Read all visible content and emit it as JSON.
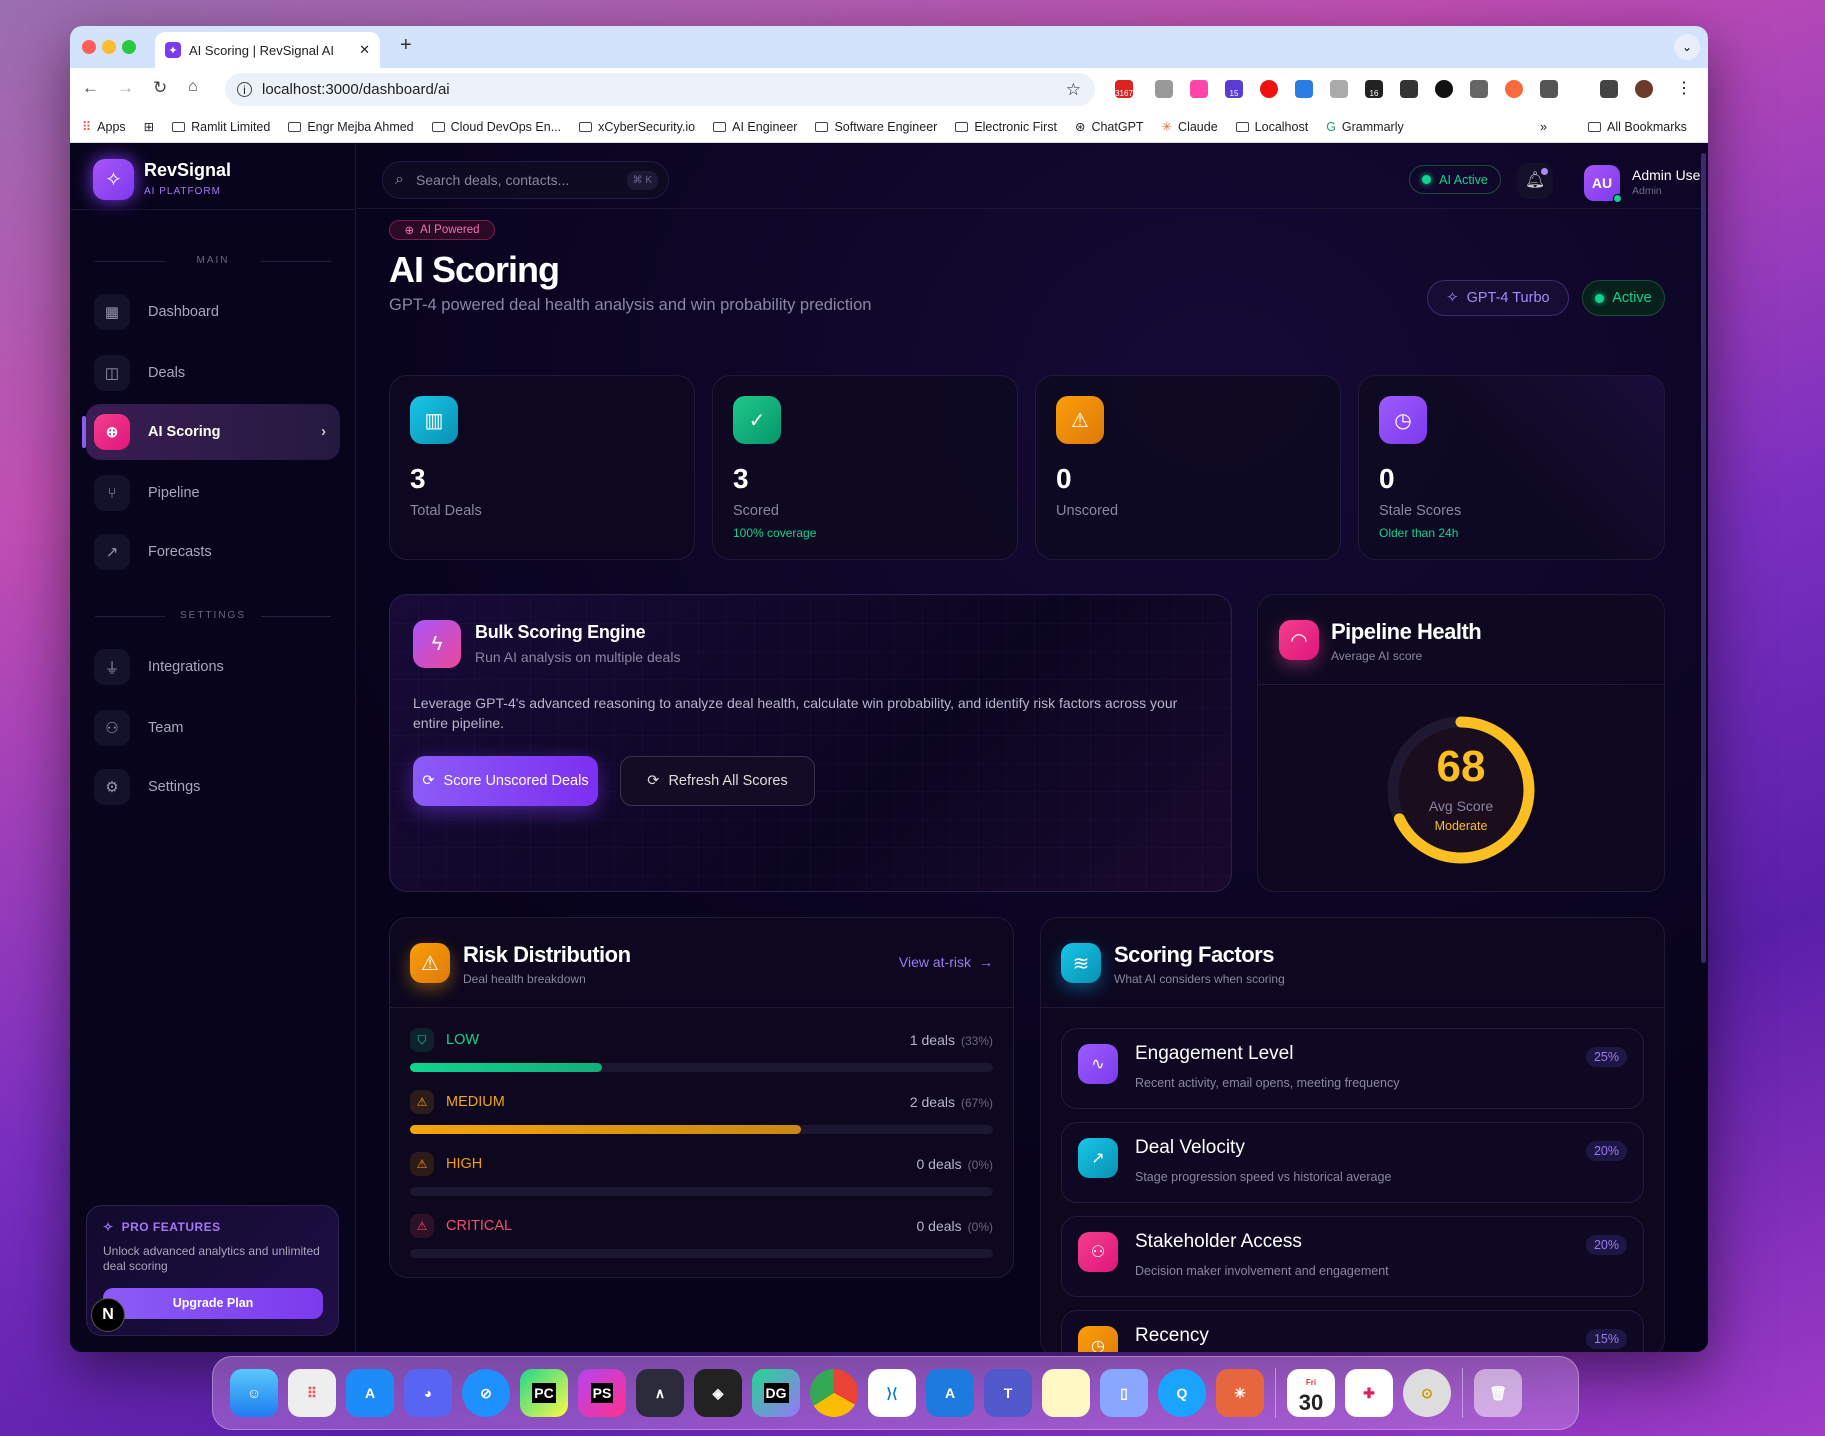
{
  "browser": {
    "tab_title": "AI Scoring | RevSignal AI",
    "url": "localhost:3000/dashboard/ai",
    "new_tab": "+",
    "bookmarks": [
      "Apps",
      "Ramlit Limited",
      "Engr Mejba Ahmed",
      "Cloud DevOps En...",
      "xCyberSecurity.io",
      "AI Engineer",
      "Software Engineer",
      "Electronic First",
      "ChatGPT",
      "Claude",
      "Localhost",
      "Grammarly"
    ],
    "bookmarks_overflow": "»",
    "all_bookmarks": "All Bookmarks",
    "ext_badges": [
      "3167",
      "15",
      "16"
    ]
  },
  "brand": {
    "name": "RevSignal",
    "tagline": "AI PLATFORM"
  },
  "sidebar": {
    "main_label": "MAIN",
    "settings_label": "SETTINGS",
    "main_items": [
      {
        "label": "Dashboard"
      },
      {
        "label": "Deals"
      },
      {
        "label": "AI Scoring"
      },
      {
        "label": "Pipeline"
      },
      {
        "label": "Forecasts"
      }
    ],
    "settings_items": [
      {
        "label": "Integrations"
      },
      {
        "label": "Team"
      },
      {
        "label": "Settings"
      }
    ],
    "pro": {
      "title": "PRO FEATURES",
      "text": "Unlock advanced analytics and unlimited deal scoring",
      "button": "Upgrade Plan"
    },
    "next_badge": "N"
  },
  "header": {
    "search_placeholder": "Search deals, contacts...",
    "shortcut": "⌘ K",
    "ai_status": "AI Active",
    "user_initials": "AU",
    "user_name": "Admin User",
    "user_role": "Admin"
  },
  "page": {
    "badge": "AI Powered",
    "title": "AI Scoring",
    "subtitle": "GPT-4 powered deal health analysis and win probability prediction",
    "model": "GPT-4 Turbo",
    "status": "Active"
  },
  "stats": [
    {
      "value": "3",
      "label": "Total Deals",
      "sub": "",
      "color": "#0fb5d4"
    },
    {
      "value": "3",
      "label": "Scored",
      "sub": "100% coverage",
      "color": "#10b981"
    },
    {
      "value": "0",
      "label": "Unscored",
      "sub": "",
      "color": "#f59e0b"
    },
    {
      "value": "0",
      "label": "Stale Scores",
      "sub": "Older than 24h",
      "color": "#8b5cf6"
    }
  ],
  "bulk": {
    "title": "Bulk Scoring Engine",
    "subtitle": "Run AI analysis on multiple deals",
    "description": "Leverage GPT-4's advanced reasoning to analyze deal health, calculate win probability, and identify risk factors across your entire pipeline.",
    "primary_button": "Score Unscored Deals",
    "secondary_button": "Refresh All Scores"
  },
  "health": {
    "title": "Pipeline Health",
    "subtitle": "Average AI score",
    "score": 68,
    "score_label": "Avg Score",
    "rating": "Moderate",
    "max": 100,
    "color": "#fbbf24"
  },
  "risk": {
    "title": "Risk Distribution",
    "subtitle": "Deal health breakdown",
    "link": "View at-risk",
    "rows": [
      {
        "level": "LOW",
        "count": "1 deals",
        "pct_label": "(33%)",
        "pct": 33,
        "color": "#10d48e"
      },
      {
        "level": "MEDIUM",
        "count": "2 deals",
        "pct_label": "(67%)",
        "pct": 67,
        "color": "#f5a50b"
      },
      {
        "level": "HIGH",
        "count": "0 deals",
        "pct_label": "(0%)",
        "pct": 0,
        "color": "#f59e0b"
      },
      {
        "level": "CRITICAL",
        "count": "0 deals",
        "pct_label": "(0%)",
        "pct": 0,
        "color": "#f4506e"
      }
    ]
  },
  "factors": {
    "title": "Scoring Factors",
    "subtitle": "What AI considers when scoring",
    "items": [
      {
        "name": "Engagement Level",
        "desc": "Recent activity, email opens, meeting frequency",
        "weight": "25%",
        "color": "#8b5cf6"
      },
      {
        "name": "Deal Velocity",
        "desc": "Stage progression speed vs historical average",
        "weight": "20%",
        "color": "#0fb5d4"
      },
      {
        "name": "Stakeholder Access",
        "desc": "Decision maker involvement and engagement",
        "weight": "20%",
        "color": "#ec4899"
      },
      {
        "name": "Recency",
        "desc": "",
        "weight": "15%",
        "color": "#f59e0b"
      }
    ]
  },
  "dock": {
    "calendar_day": "30",
    "calendar_month": "Fri"
  }
}
